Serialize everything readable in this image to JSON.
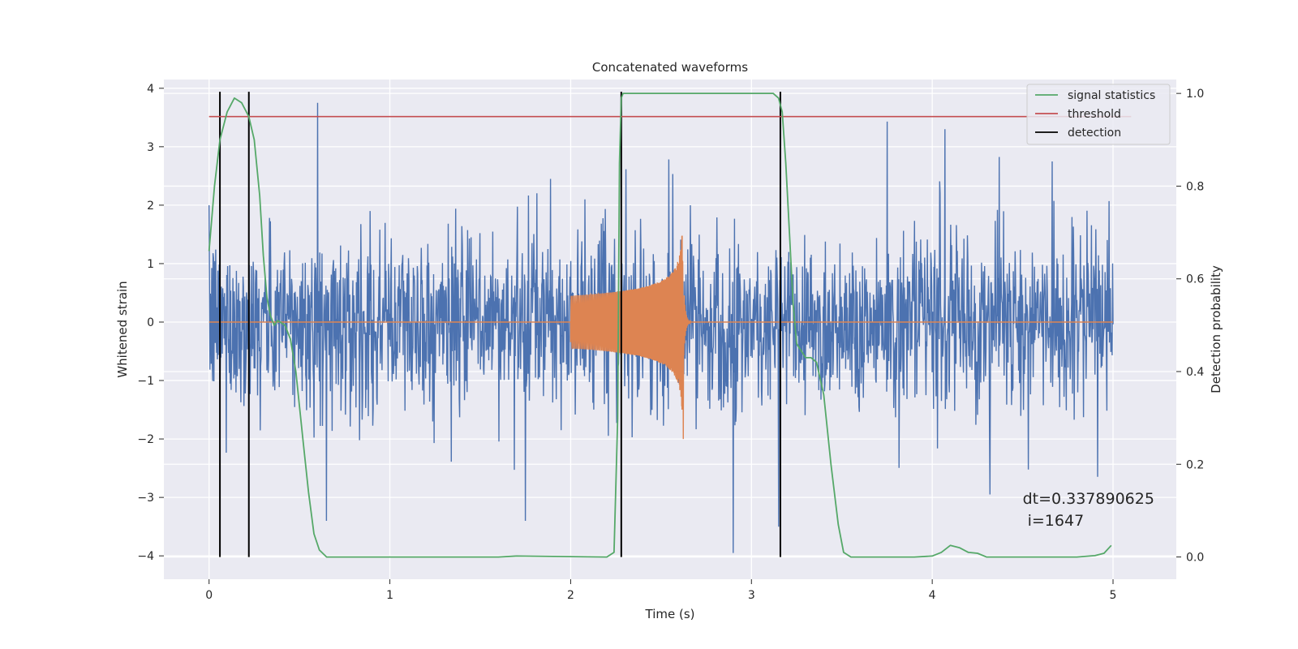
{
  "chart_data": {
    "type": "line",
    "title": "Concatenated waveforms",
    "xlabel": "Time (s)",
    "ylabel": "Whitened strain",
    "ylabel_right": "Detection probability",
    "xlim": [
      -0.25,
      5.35
    ],
    "ylim": [
      -4.4,
      4.15
    ],
    "ylim_right": [
      -0.048,
      1.03
    ],
    "x_ticks": [
      0,
      1,
      2,
      3,
      4,
      5
    ],
    "x_tick_labels": [
      "0",
      "1",
      "2",
      "3",
      "4",
      "5"
    ],
    "y_ticks": [
      -4,
      -3,
      -2,
      -1,
      0,
      1,
      2,
      3,
      4
    ],
    "y_tick_labels": [
      "−4",
      "−3",
      "−2",
      "−1",
      "0",
      "1",
      "2",
      "3",
      "4"
    ],
    "y_ticks_right": [
      0.0,
      0.2,
      0.4,
      0.6,
      0.8,
      1.0
    ],
    "y_tick_labels_right": [
      "0.0",
      "0.2",
      "0.4",
      "0.6",
      "0.8",
      "1.0"
    ],
    "grid": true,
    "legend": {
      "position": "top-right",
      "entries": [
        {
          "label": "signal statistics",
          "color": "#55a868"
        },
        {
          "label": "threshold",
          "color": "#c44e52"
        },
        {
          "label": "detection",
          "color": "#000000"
        }
      ]
    },
    "colors": {
      "noise": "#4c72b0",
      "injection": "#dd8452",
      "background": "#eaeaf2",
      "grid": "#ffffff"
    },
    "series": [
      {
        "name": "",
        "axis": "left",
        "color": "#4c72b0",
        "description_values": "whitened strain noise, Gaussian-like, time range 0 to 5 s, sample_rate_hz_est 410",
        "x_range": [
          0,
          5
        ],
        "typical_envelope": [
          -2.0,
          2.3
        ],
        "peaks": [
          [
            0.6,
            3.75
          ],
          [
            3.75,
            3.43
          ],
          [
            4.07,
            3.3
          ],
          [
            2.9,
            -3.95
          ],
          [
            0.65,
            -3.4
          ],
          [
            1.75,
            -3.4
          ],
          [
            3.15,
            -3.5
          ],
          [
            4.32,
            -2.95
          ]
        ]
      },
      {
        "name": "",
        "axis": "left",
        "color": "#dd8452",
        "description_values": "injected chirp waveform",
        "x_range": [
          0,
          5
        ],
        "chirp_start": 2.0,
        "merger_time": 2.62,
        "ringdown_end": 2.66,
        "amplitude_start": 0.45,
        "amplitude_peak": 1.5,
        "amplitude_min_at_merger": -2.0
      },
      {
        "name": "signal statistics",
        "axis": "right",
        "color": "#55a868",
        "x": [
          0.0,
          0.03,
          0.06,
          0.1,
          0.14,
          0.18,
          0.22,
          0.25,
          0.28,
          0.3,
          0.32,
          0.34,
          0.36,
          0.38,
          0.42,
          0.45,
          0.48,
          0.52,
          0.55,
          0.58,
          0.61,
          0.65,
          1.0,
          1.6,
          1.7,
          2.2,
          2.24,
          2.26,
          2.27,
          2.28,
          2.29,
          2.31,
          2.34,
          2.4,
          3.0,
          3.12,
          3.15,
          3.17,
          3.19,
          3.21,
          3.23,
          3.25,
          3.3,
          3.33,
          3.36,
          3.4,
          3.44,
          3.48,
          3.51,
          3.55,
          3.9,
          4.0,
          4.05,
          4.1,
          4.15,
          4.2,
          4.25,
          4.3,
          4.6,
          4.8,
          4.9,
          4.95,
          4.99
        ],
        "values": [
          0.66,
          0.8,
          0.9,
          0.96,
          0.99,
          0.98,
          0.95,
          0.9,
          0.78,
          0.65,
          0.56,
          0.52,
          0.5,
          0.51,
          0.5,
          0.47,
          0.4,
          0.25,
          0.14,
          0.05,
          0.015,
          0.0,
          0.0,
          0.0,
          0.002,
          0.0,
          0.01,
          0.3,
          0.85,
          0.99,
          1.0,
          1.0,
          1.0,
          1.0,
          1.0,
          1.0,
          0.99,
          0.96,
          0.85,
          0.7,
          0.55,
          0.46,
          0.43,
          0.43,
          0.42,
          0.35,
          0.2,
          0.07,
          0.01,
          0.0,
          0.0,
          0.002,
          0.01,
          0.025,
          0.02,
          0.01,
          0.008,
          0.0,
          0.0,
          0.0,
          0.003,
          0.008,
          0.025
        ]
      },
      {
        "name": "threshold",
        "axis": "right",
        "color": "#c44e52",
        "x": [
          0,
          5.1
        ],
        "values": [
          0.95,
          0.95
        ]
      }
    ],
    "detections": [
      0.06,
      0.22,
      2.28,
      3.16
    ],
    "annotation": {
      "line1": "dt=0.337890625",
      "line2": " i=1647",
      "x": 4.5,
      "y": -3.4
    }
  }
}
